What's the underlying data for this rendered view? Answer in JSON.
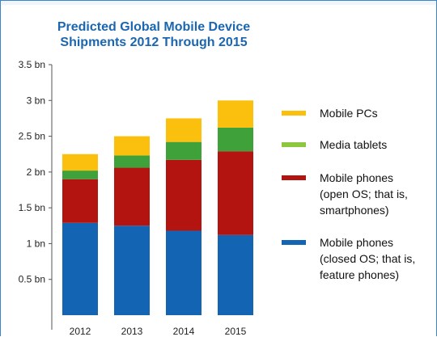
{
  "chart_data": {
    "type": "bar",
    "stacked": true,
    "title_lines": [
      "Predicted Global Mobile Device",
      "Shipments 2012 Through 2015"
    ],
    "categories": [
      "2012",
      "2013",
      "2014",
      "2015"
    ],
    "ylim": [
      0,
      3.5
    ],
    "yticks": [
      {
        "value": 0.5,
        "label": "0.5 bn"
      },
      {
        "value": 1,
        "label": "1 bn"
      },
      {
        "value": 1.5,
        "label": "1.5 bn"
      },
      {
        "value": 2,
        "label": "2 bn"
      },
      {
        "value": 2.5,
        "label": "2.5 bn"
      },
      {
        "value": 3,
        "label": "3 bn"
      },
      {
        "value": 3.5,
        "label": "3.5 bn"
      }
    ],
    "series": [
      {
        "name": "Mobile phones (closed OS; that is, feature phones)",
        "color": "#1464b4",
        "values": [
          1.29,
          1.25,
          1.18,
          1.12
        ]
      },
      {
        "name": "Mobile phones (open OS; that is, smartphones)",
        "color": "#b4140f",
        "values": [
          0.61,
          0.81,
          0.99,
          1.17
        ]
      },
      {
        "name": "Media tablets",
        "color": "#3fa13a",
        "values": [
          0.12,
          0.17,
          0.25,
          0.33
        ]
      },
      {
        "name": "Mobile PCs",
        "color": "#fbc00e",
        "values": [
          0.23,
          0.27,
          0.33,
          0.38
        ]
      }
    ],
    "legend": [
      {
        "lines": [
          "Mobile PCs"
        ],
        "color": "#fbc00e"
      },
      {
        "lines": [
          "Media tablets"
        ],
        "color": "#8dc63f"
      },
      {
        "lines": [
          "Mobile phones",
          "(open OS; that is,",
          "smartphones)"
        ],
        "color": "#b4140f"
      },
      {
        "lines": [
          "Mobile phones",
          "(closed OS; that is,",
          "feature phones)"
        ],
        "color": "#1464b4"
      }
    ],
    "legend_position": "right",
    "grid": false
  }
}
